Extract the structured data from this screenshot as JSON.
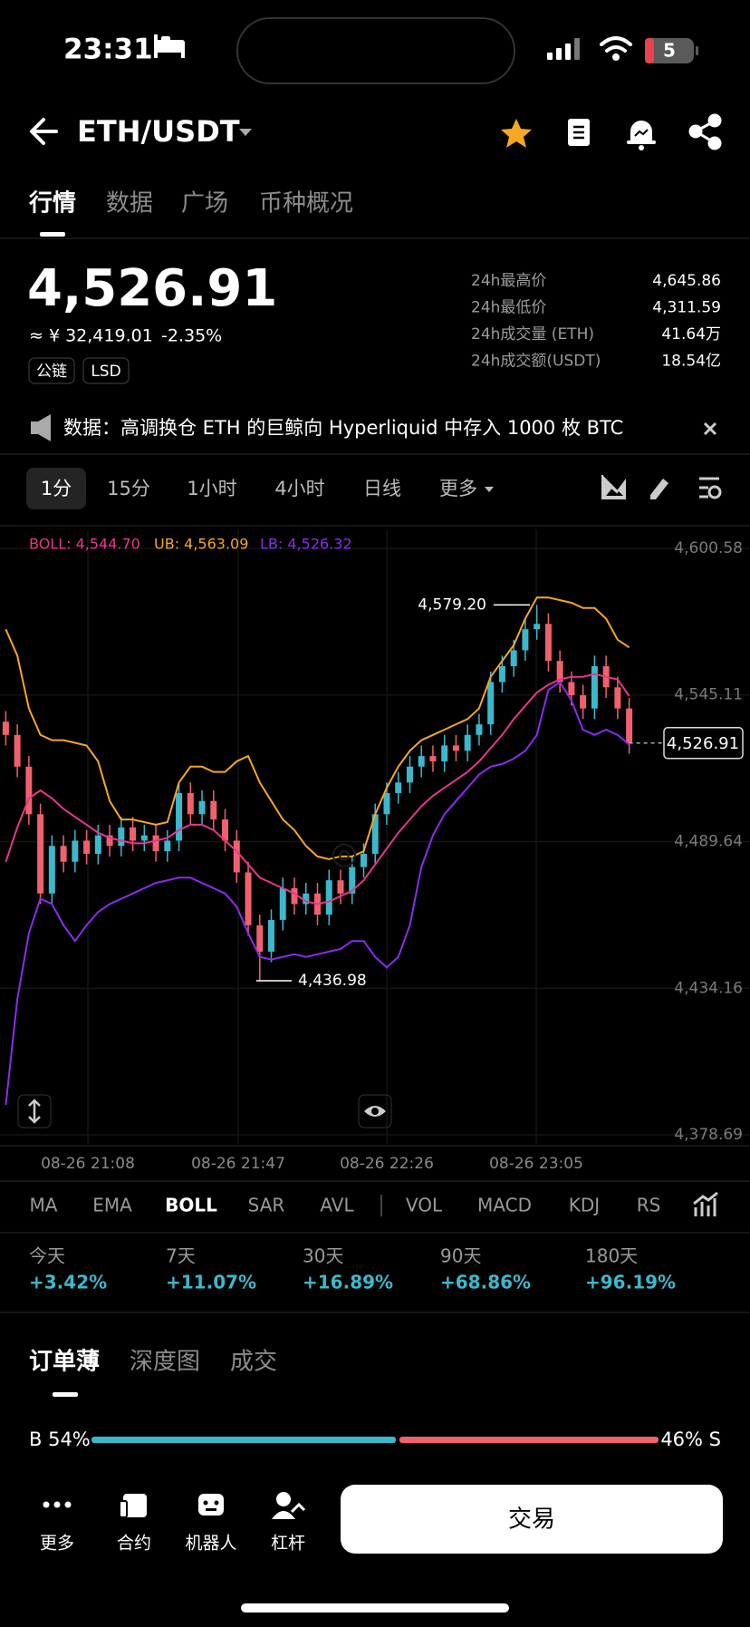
{
  "status": {
    "time": "23:31",
    "battery": "5"
  },
  "header": {
    "pair": "ETH/USDT"
  },
  "tabs": [
    "行情",
    "数据",
    "广场",
    "币种概况"
  ],
  "price": {
    "last": "4,526.91",
    "cny": "≈ ¥ 32,419.01",
    "change": "-2.35%",
    "tags": [
      "公链",
      "LSD"
    ]
  },
  "stats": [
    {
      "label": "24h最高价",
      "value": "4,645.86"
    },
    {
      "label": "24h最低价",
      "value": "4,311.59"
    },
    {
      "label": "24h成交量 (ETH)",
      "value": "41.64万"
    },
    {
      "label": "24h成交额(USDT)",
      "value": "18.54亿"
    }
  ],
  "notice": "数据：高调换仓 ETH 的巨鲸向 Hyperliquid 中存入 1000 枚 BTC",
  "intervals": [
    "1分",
    "15分",
    "1小时",
    "4小时",
    "日线",
    "更多"
  ],
  "chart_data": {
    "type": "candlestick",
    "up_color": "#3bb8cc",
    "down_color": "#f0616d",
    "legend": [
      "BOLL: 4,544.70",
      "UB: 4,563.09",
      "LB: 4,526.32"
    ],
    "x_labels": [
      "08-26 21:08",
      "08-26 21:47",
      "08-26 22:26",
      "08-26 23:05"
    ],
    "ylim": [
      4378.69,
      4600.58
    ],
    "yticks": [
      {
        "value": 4378.69,
        "label": "4,378.69"
      },
      {
        "value": 4434.16,
        "label": "4,434.16"
      },
      {
        "value": 4489.64,
        "label": "4,489.64"
      },
      {
        "value": 4545.11,
        "label": "4,545.11"
      },
      {
        "value": 4600.58,
        "label": "4,600.58"
      }
    ],
    "annotations": [
      {
        "value": 4579.2,
        "label": "4,579.20"
      },
      {
        "value": 4436.98,
        "label": "4,436.98"
      },
      {
        "value": 4526.91,
        "label": "4,526.91"
      }
    ],
    "open": [
      4535,
      4530,
      4518,
      4500,
      4470,
      4488,
      4482,
      4490,
      4485,
      4492,
      4488,
      4495,
      4490,
      4492,
      4486,
      4490,
      4508,
      4500,
      4505,
      4498,
      4490,
      4478,
      4458,
      4448,
      4460,
      4472,
      4466,
      4470,
      4462,
      4475,
      4470,
      4480,
      4485,
      4500,
      4508,
      4512,
      4518,
      4522,
      4520,
      4526,
      4524,
      4530,
      4534,
      4550,
      4556,
      4562,
      4570,
      4572,
      4558,
      4550,
      4545,
      4540,
      4556,
      4548,
      4540
    ],
    "high": [
      4539,
      4534,
      4522,
      4504,
      4492,
      4492,
      4494,
      4494,
      4496,
      4496,
      4499,
      4499,
      4496,
      4496,
      4494,
      4512,
      4512,
      4509,
      4509,
      4502,
      4494,
      4482,
      4462,
      4464,
      4476,
      4476,
      4474,
      4474,
      4479,
      4479,
      4484,
      4489,
      4504,
      4512,
      4516,
      4522,
      4526,
      4526,
      4530,
      4530,
      4534,
      4538,
      4554,
      4560,
      4566,
      4574,
      4579.2,
      4576,
      4562,
      4554,
      4549,
      4560,
      4560,
      4552,
      4544
    ],
    "low": [
      4526,
      4514,
      4496,
      4466,
      4466,
      4478,
      4478,
      4481,
      4481,
      4484,
      4484,
      4486,
      4486,
      4482,
      4482,
      4486,
      4496,
      4496,
      4494,
      4486,
      4474,
      4454,
      4436.98,
      4444,
      4456,
      4462,
      4462,
      4458,
      4458,
      4466,
      4466,
      4476,
      4481,
      4496,
      4504,
      4508,
      4514,
      4516,
      4516,
      4520,
      4520,
      4526,
      4530,
      4546,
      4552,
      4558,
      4566,
      4554,
      4546,
      4541,
      4536,
      4536,
      4544,
      4536,
      4522.91
    ],
    "close": [
      4530,
      4518,
      4500,
      4470,
      4488,
      4482,
      4490,
      4485,
      4492,
      4488,
      4495,
      4490,
      4492,
      4486,
      4490,
      4508,
      4500,
      4505,
      4498,
      4490,
      4478,
      4458,
      4448,
      4460,
      4472,
      4466,
      4470,
      4462,
      4475,
      4470,
      4480,
      4485,
      4500,
      4508,
      4512,
      4518,
      4522,
      4520,
      4526,
      4524,
      4530,
      4534,
      4550,
      4556,
      4562,
      4570,
      4572,
      4558,
      4550,
      4545,
      4540,
      4556,
      4548,
      4540,
      4526.91
    ],
    "series": [
      {
        "name": "UB",
        "color": "#f5a623",
        "values": [
          4570,
          4560,
          4540,
          4530,
          4528,
          4528,
          4527,
          4526,
          4520,
          4505,
          4498,
          4498,
          4497,
          4496,
          4497,
          4512,
          4518,
          4518,
          4516,
          4516,
          4520,
          4522,
          4512,
          4505,
          4498,
          4494,
          4488,
          4484,
          4483,
          4484,
          4484,
          4486,
          4500,
          4510,
          4518,
          4524,
          4528,
          4530,
          4532,
          4534,
          4536,
          4540,
          4552,
          4558,
          4564,
          4574,
          4582,
          4582,
          4581,
          4580,
          4578,
          4578,
          4574,
          4566,
          4563.09
        ]
      },
      {
        "name": "BOLL",
        "color": "#e8358f",
        "values": [
          4482,
          4495,
          4506,
          4509,
          4506,
          4502,
          4499,
          4496,
          4493,
          4491,
          4490,
          4489,
          4489,
          4490,
          4491,
          4494,
          4496,
          4496,
          4494,
          4490,
          4486,
          4481,
          4476,
          4474,
          4472,
          4470,
          4467,
          4466,
          4467,
          4469,
          4471,
          4475,
          4481,
          4487,
          4493,
          4498,
          4503,
          4507,
          4510,
          4513,
          4516,
          4520,
          4525,
          4530,
          4536,
          4541,
          4546,
          4549,
          4551,
          4552,
          4552,
          4553,
          4552,
          4551,
          4544.7
        ]
      },
      {
        "name": "LB",
        "color": "#8b2cf0",
        "values": [
          4390,
          4430,
          4455,
          4468,
          4466,
          4458,
          4452,
          4458,
          4463,
          4466,
          4468,
          4470,
          4472,
          4474,
          4475,
          4476,
          4476,
          4474,
          4472,
          4470,
          4465,
          4455,
          4446,
          4445,
          4446,
          4447,
          4446,
          4447,
          4448,
          4449,
          4452,
          4452,
          4446,
          4442,
          4446,
          4458,
          4480,
          4492,
          4500,
          4505,
          4510,
          4515,
          4518,
          4519,
          4521,
          4524,
          4530,
          4547,
          4550,
          4543,
          4532,
          4530,
          4532,
          4530,
          4526.32
        ]
      }
    ]
  },
  "indicators": [
    "MA",
    "EMA",
    "BOLL",
    "SAR",
    "AVL",
    "VOL",
    "MACD",
    "KDJ",
    "RS"
  ],
  "returns": [
    {
      "period": "今天",
      "value": "+3.42%"
    },
    {
      "period": "7天",
      "value": "+11.07%"
    },
    {
      "period": "30天",
      "value": "+16.89%"
    },
    {
      "period": "90天",
      "value": "+68.86%"
    },
    {
      "period": "180天",
      "value": "+96.19%"
    }
  ],
  "book_tabs": [
    "订单薄",
    "深度图",
    "成交"
  ],
  "ratio": {
    "buy": 54,
    "sell": 46,
    "buy_label": "B 54%",
    "sell_label": "46% S"
  },
  "nav": [
    "更多",
    "合约",
    "机器人",
    "杠杆"
  ],
  "trade": "交易"
}
